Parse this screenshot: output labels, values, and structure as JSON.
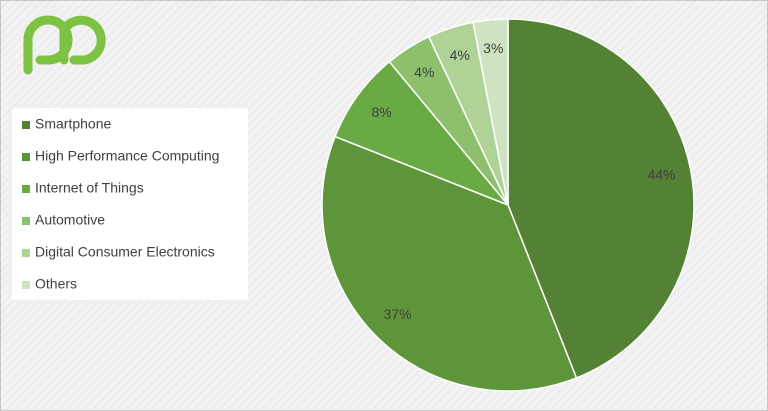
{
  "chart_data": {
    "type": "pie",
    "categories": [
      "Smartphone",
      "High Performance Computing",
      "Internet of Things",
      "Automotive",
      "Digital Consumer Electronics",
      "Others"
    ],
    "values": [
      44,
      37,
      8,
      4,
      4,
      3
    ],
    "value_labels": [
      "44%",
      "37%",
      "8%",
      "4%",
      "4%",
      "3%"
    ],
    "colors": [
      "#548235",
      "#5f953a",
      "#6aaa44",
      "#8dbf6c",
      "#afd297",
      "#cfe3c2"
    ],
    "legend": "left"
  }
}
